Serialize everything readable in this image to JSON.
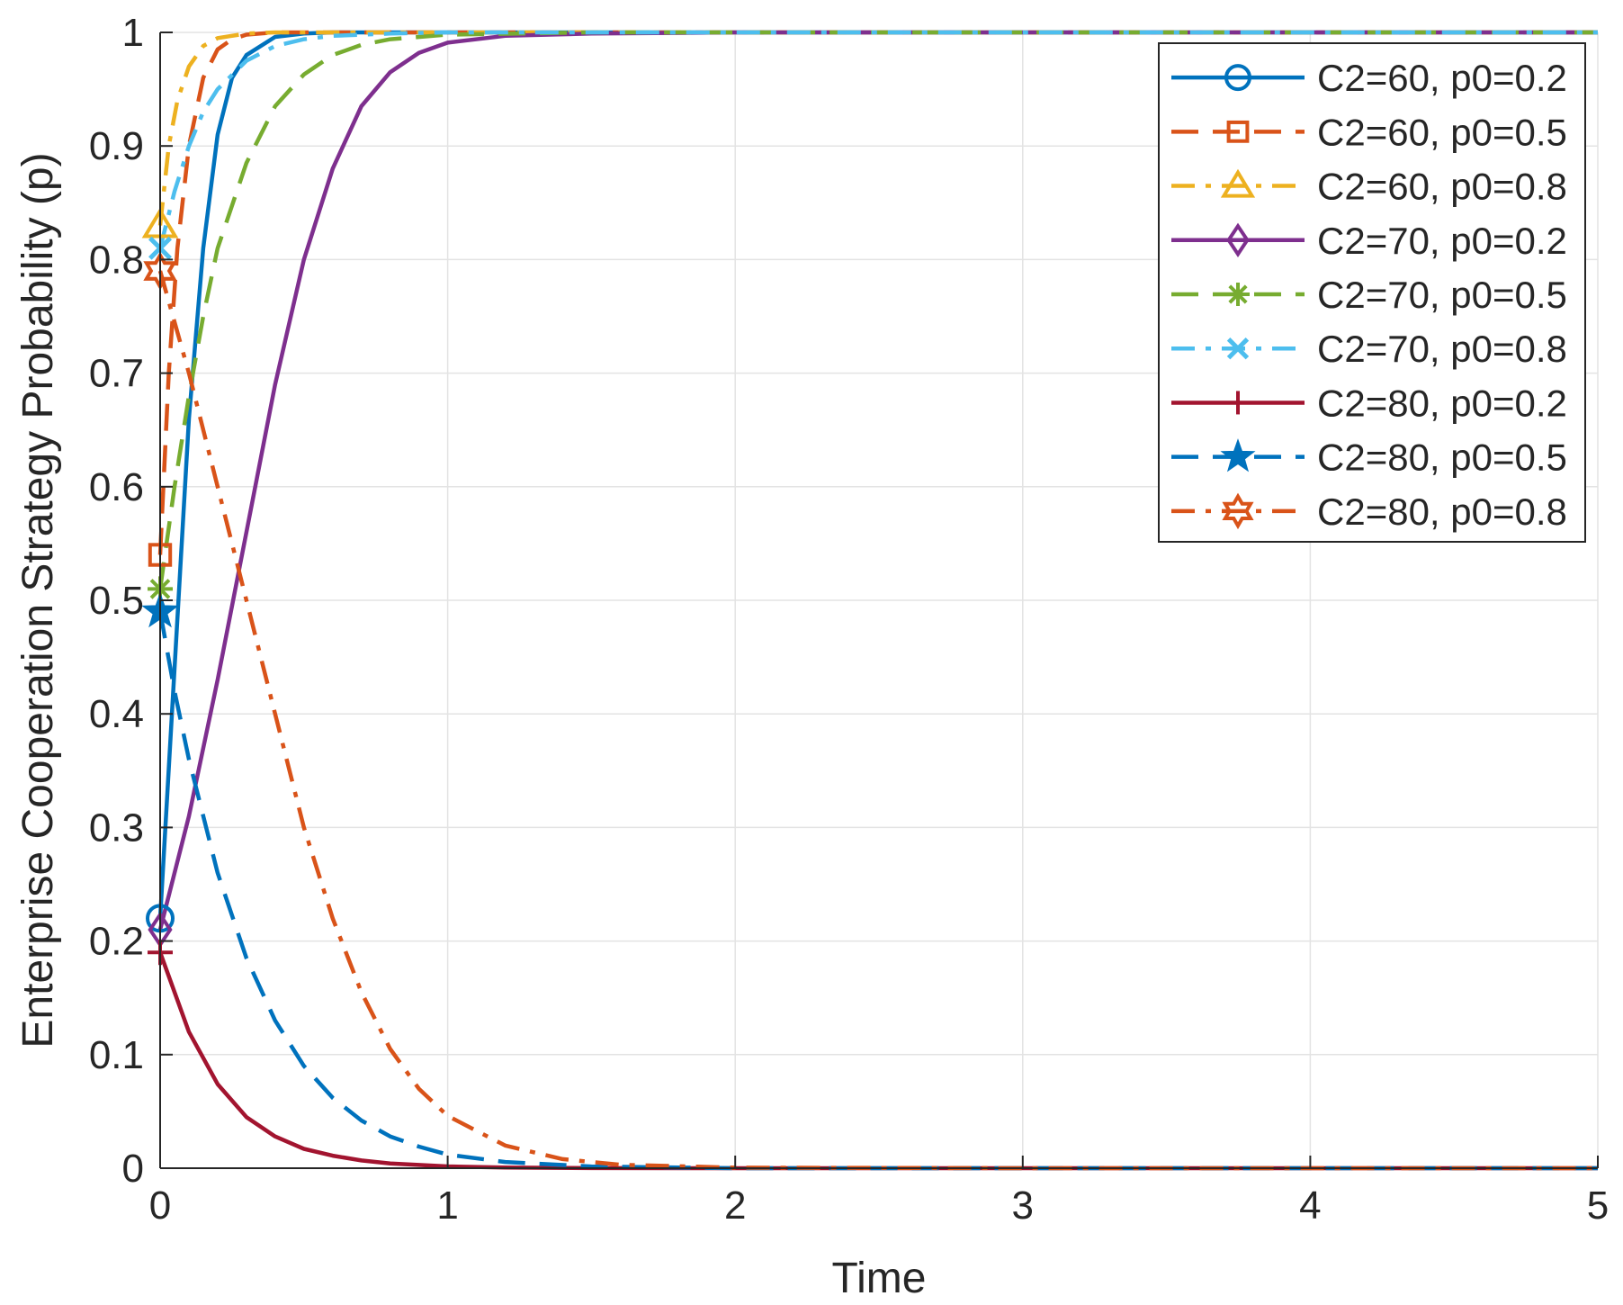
{
  "chart_data": {
    "type": "line",
    "title": "",
    "xlabel": "Time",
    "ylabel": "Enterprise Cooperation Strategy Probability (p)",
    "xlim": [
      0,
      5
    ],
    "ylim": [
      0,
      1
    ],
    "grid": true,
    "legend_position": "top-right",
    "x_ticks": [
      {
        "value": 0,
        "label": "0"
      },
      {
        "value": 1,
        "label": "1"
      },
      {
        "value": 2,
        "label": "2"
      },
      {
        "value": 3,
        "label": "3"
      },
      {
        "value": 4,
        "label": "4"
      },
      {
        "value": 5,
        "label": "5"
      }
    ],
    "y_ticks": [
      {
        "value": 0,
        "label": "0"
      },
      {
        "value": 0.1,
        "label": "0.1"
      },
      {
        "value": 0.2,
        "label": "0.2"
      },
      {
        "value": 0.3,
        "label": "0.3"
      },
      {
        "value": 0.4,
        "label": "0.4"
      },
      {
        "value": 0.5,
        "label": "0.5"
      },
      {
        "value": 0.6,
        "label": "0.6"
      },
      {
        "value": 0.7,
        "label": "0.7"
      },
      {
        "value": 0.8,
        "label": "0.8"
      },
      {
        "value": 0.9,
        "label": "0.9"
      },
      {
        "value": 1,
        "label": "1"
      }
    ],
    "series": [
      {
        "name": "C2=60, p0=0.2",
        "color": "#0072BD",
        "dash": "solid",
        "marker": "circle",
        "x": [
          0,
          0.05,
          0.1,
          0.15,
          0.2,
          0.25,
          0.3,
          0.4,
          0.5,
          0.6,
          0.8,
          1,
          2,
          3,
          4,
          5
        ],
        "y": [
          0.22,
          0.44,
          0.66,
          0.81,
          0.91,
          0.96,
          0.98,
          0.996,
          0.999,
          1,
          1,
          1,
          1,
          1,
          1,
          1
        ]
      },
      {
        "name": "C2=60, p0=0.5",
        "color": "#D95319",
        "dash": "dashed",
        "marker": "square",
        "x": [
          0,
          0.03,
          0.06,
          0.1,
          0.15,
          0.2,
          0.25,
          0.3,
          0.4,
          0.5,
          1,
          2,
          3,
          4,
          5
        ],
        "y": [
          0.54,
          0.7,
          0.81,
          0.9,
          0.96,
          0.985,
          0.994,
          0.998,
          1,
          1,
          1,
          1,
          1,
          1,
          1
        ],
        "marker_y": 0.54
      },
      {
        "name": "C2=60, p0=0.8",
        "color": "#EDB120",
        "dash": "dashdot",
        "marker": "triangle",
        "x": [
          0,
          0.03,
          0.06,
          0.1,
          0.15,
          0.2,
          0.3,
          0.4,
          0.5,
          1,
          2,
          3,
          4,
          5
        ],
        "y": [
          0.83,
          0.9,
          0.94,
          0.97,
          0.988,
          0.995,
          0.999,
          1,
          1,
          1,
          1,
          1,
          1,
          1
        ]
      },
      {
        "name": "C2=70, p0=0.2",
        "color": "#7E2F8E",
        "dash": "solid",
        "marker": "diamond",
        "x": [
          0,
          0.1,
          0.2,
          0.3,
          0.4,
          0.5,
          0.6,
          0.7,
          0.8,
          0.9,
          1,
          1.2,
          1.5,
          2,
          3,
          4,
          5
        ],
        "y": [
          0.21,
          0.31,
          0.43,
          0.56,
          0.69,
          0.8,
          0.88,
          0.935,
          0.965,
          0.982,
          0.991,
          0.997,
          0.999,
          1,
          1,
          1,
          1
        ]
      },
      {
        "name": "C2=70, p0=0.5",
        "color": "#77AC30",
        "dash": "dashed",
        "marker": "asterisk",
        "x": [
          0,
          0.05,
          0.1,
          0.15,
          0.2,
          0.3,
          0.4,
          0.5,
          0.6,
          0.7,
          0.8,
          1,
          1.5,
          2,
          3,
          4,
          5
        ],
        "y": [
          0.51,
          0.6,
          0.68,
          0.75,
          0.81,
          0.885,
          0.935,
          0.963,
          0.98,
          0.989,
          0.994,
          0.998,
          1,
          1,
          1,
          1,
          1
        ]
      },
      {
        "name": "C2=70, p0=0.8",
        "color": "#4DBEEE",
        "dash": "dashdot",
        "marker": "x",
        "x": [
          0,
          0.05,
          0.1,
          0.15,
          0.2,
          0.3,
          0.4,
          0.5,
          0.6,
          0.8,
          1,
          2,
          3,
          4,
          5
        ],
        "y": [
          0.81,
          0.86,
          0.9,
          0.93,
          0.95,
          0.975,
          0.988,
          0.994,
          0.997,
          0.999,
          1,
          1,
          1,
          1,
          1
        ]
      },
      {
        "name": "C2=80, p0=0.2",
        "color": "#A2142F",
        "dash": "solid",
        "marker": "plus",
        "x": [
          0,
          0.1,
          0.2,
          0.3,
          0.4,
          0.5,
          0.6,
          0.7,
          0.8,
          1,
          1.2,
          1.5,
          2,
          3,
          4,
          5
        ],
        "y": [
          0.19,
          0.12,
          0.074,
          0.045,
          0.028,
          0.017,
          0.011,
          0.0068,
          0.0042,
          0.0016,
          0.0006,
          0.0001,
          0,
          0,
          0,
          0
        ]
      },
      {
        "name": "C2=80, p0=0.5",
        "color": "#0072BD",
        "dash": "dashed",
        "marker": "star",
        "x": [
          0,
          0.05,
          0.1,
          0.2,
          0.3,
          0.4,
          0.5,
          0.6,
          0.7,
          0.8,
          0.9,
          1,
          1.2,
          1.5,
          2,
          3,
          4,
          5
        ],
        "y": [
          0.49,
          0.42,
          0.36,
          0.26,
          0.185,
          0.13,
          0.09,
          0.062,
          0.042,
          0.028,
          0.019,
          0.012,
          0.0055,
          0.0015,
          0,
          0,
          0,
          0
        ]
      },
      {
        "name": "C2=80, p0=0.8",
        "color": "#D95319",
        "dash": "dashdot",
        "marker": "hexagram",
        "x": [
          0,
          0.1,
          0.2,
          0.3,
          0.4,
          0.5,
          0.6,
          0.7,
          0.8,
          0.9,
          1,
          1.2,
          1.4,
          1.6,
          2,
          3,
          4,
          5
        ],
        "y": [
          0.79,
          0.7,
          0.6,
          0.5,
          0.4,
          0.3,
          0.22,
          0.155,
          0.105,
          0.07,
          0.046,
          0.02,
          0.008,
          0.003,
          0.0005,
          0,
          0,
          0
        ]
      }
    ]
  }
}
